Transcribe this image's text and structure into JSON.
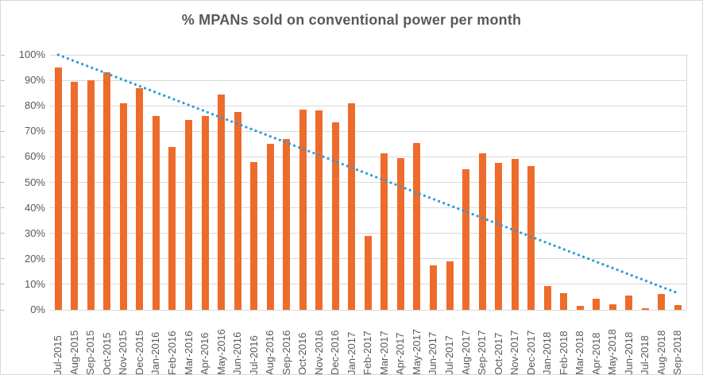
{
  "chart_data": {
    "type": "bar",
    "title": "% MPANs sold on conventional power per month",
    "categories": [
      "Jul-2015",
      "Aug-2015",
      "Sep-2015",
      "Oct-2015",
      "Nov-2015",
      "Dec-2015",
      "Jan-2016",
      "Feb-2016",
      "Mar-2016",
      "Apr-2016",
      "May-2016",
      "Jun-2016",
      "Jul-2016",
      "Aug-2016",
      "Sep-2016",
      "Oct-2016",
      "Nov-2016",
      "Dec-2016",
      "Jan-2017",
      "Feb-2017",
      "Mar-2017",
      "Apr-2017",
      "May-2017",
      "Jun-2017",
      "Jul-2017",
      "Aug-2017",
      "Sep-2017",
      "Oct-2017",
      "Nov-2017",
      "Dec-2017",
      "Jan-2018",
      "Feb-2018",
      "Mar-2018",
      "Apr-2018",
      "May-2018",
      "Jun-2018",
      "Jul-2018",
      "Aug-2018",
      "Sep-2018"
    ],
    "values": [
      95,
      89.5,
      90,
      93,
      81,
      87,
      76,
      64,
      74.5,
      76,
      84.5,
      77.5,
      58,
      65,
      67,
      78.5,
      78.3,
      73.5,
      81,
      29,
      61.3,
      59.5,
      65.5,
      17.5,
      19,
      55,
      61.5,
      57.5,
      59.3,
      56.3,
      9.5,
      6.5,
      1.5,
      4.3,
      2.3,
      5.7,
      0.5,
      6.2,
      1.8
    ],
    "y_ticks": [
      "100%",
      "90%",
      "80%",
      "70%",
      "60%",
      "50%",
      "40%",
      "30%",
      "20%",
      "10%",
      "0%"
    ],
    "ylim": [
      0,
      100
    ],
    "grid": true,
    "legend": "none",
    "xlabel": "",
    "ylabel": "",
    "trendline": {
      "style": "dotted",
      "start_pct": 100,
      "end_pct": 6.5,
      "color": "#2E9BD5"
    },
    "colors": {
      "bar": "#ED6C2C",
      "grid": "#D9D9D9",
      "axis_text": "#595959",
      "title_text": "#595959"
    }
  }
}
